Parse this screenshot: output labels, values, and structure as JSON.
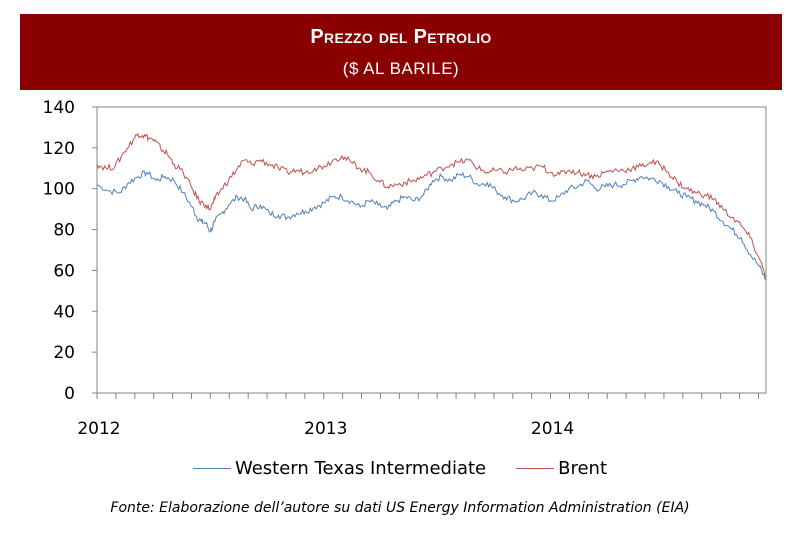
{
  "header": {
    "title": "Prezzo del Petrolio",
    "subtitle": "($ AL BARILE)"
  },
  "source": "Fonte: Elaborazione dell’autore su dati US Energy Information Administration (EIA)",
  "chart_data": {
    "type": "line",
    "x_range": [
      2012.0,
      2014.95
    ],
    "ylim": [
      0,
      140
    ],
    "y_ticks": [
      0,
      20,
      40,
      60,
      80,
      100,
      120,
      140
    ],
    "x_tick_labels": [
      {
        "label": "2012",
        "value": 2012.0
      },
      {
        "label": "2013",
        "value": 2013.0
      },
      {
        "label": "2014",
        "value": 2014.0
      }
    ],
    "grid": false,
    "legend_position": "bottom",
    "series": [
      {
        "name": "Western Texas Intermediate",
        "color": "#4f81bd",
        "points": [
          [
            2012.0,
            102
          ],
          [
            2012.05,
            99
          ],
          [
            2012.1,
            98
          ],
          [
            2012.14,
            103
          ],
          [
            2012.18,
            106
          ],
          [
            2012.22,
            108
          ],
          [
            2012.26,
            104
          ],
          [
            2012.3,
            106
          ],
          [
            2012.34,
            104
          ],
          [
            2012.38,
            98
          ],
          [
            2012.42,
            91
          ],
          [
            2012.44,
            86
          ],
          [
            2012.46,
            84
          ],
          [
            2012.48,
            83
          ],
          [
            2012.5,
            79
          ],
          [
            2012.52,
            84
          ],
          [
            2012.55,
            88
          ],
          [
            2012.58,
            92
          ],
          [
            2012.62,
            96
          ],
          [
            2012.65,
            95
          ],
          [
            2012.68,
            90
          ],
          [
            2012.72,
            92
          ],
          [
            2012.76,
            88
          ],
          [
            2012.8,
            87
          ],
          [
            2012.84,
            86
          ],
          [
            2012.88,
            88
          ],
          [
            2012.92,
            89
          ],
          [
            2012.96,
            91
          ],
          [
            2013.0,
            93
          ],
          [
            2013.04,
            96
          ],
          [
            2013.08,
            96
          ],
          [
            2013.12,
            94
          ],
          [
            2013.16,
            91
          ],
          [
            2013.2,
            94
          ],
          [
            2013.24,
            92
          ],
          [
            2013.28,
            90
          ],
          [
            2013.32,
            94
          ],
          [
            2013.36,
            96
          ],
          [
            2013.4,
            94
          ],
          [
            2013.44,
            97
          ],
          [
            2013.48,
            104
          ],
          [
            2013.52,
            106
          ],
          [
            2013.56,
            104
          ],
          [
            2013.6,
            107
          ],
          [
            2013.64,
            106
          ],
          [
            2013.68,
            102
          ],
          [
            2013.72,
            103
          ],
          [
            2013.76,
            99
          ],
          [
            2013.8,
            96
          ],
          [
            2013.84,
            94
          ],
          [
            2013.88,
            95
          ],
          [
            2013.92,
            98
          ],
          [
            2013.96,
            97
          ],
          [
            2014.0,
            94
          ],
          [
            2014.04,
            96
          ],
          [
            2014.08,
            100
          ],
          [
            2014.12,
            101
          ],
          [
            2014.16,
            104
          ],
          [
            2014.2,
            100
          ],
          [
            2014.24,
            101
          ],
          [
            2014.28,
            102
          ],
          [
            2014.32,
            102
          ],
          [
            2014.36,
            104
          ],
          [
            2014.4,
            106
          ],
          [
            2014.44,
            105
          ],
          [
            2014.48,
            104
          ],
          [
            2014.52,
            101
          ],
          [
            2014.56,
            98
          ],
          [
            2014.6,
            96
          ],
          [
            2014.64,
            94
          ],
          [
            2014.68,
            92
          ],
          [
            2014.72,
            89
          ],
          [
            2014.76,
            84
          ],
          [
            2014.8,
            80
          ],
          [
            2014.84,
            76
          ],
          [
            2014.88,
            68
          ],
          [
            2014.92,
            62
          ],
          [
            2014.95,
            55
          ]
        ]
      },
      {
        "name": "Brent",
        "color": "#c0504d",
        "points": [
          [
            2012.0,
            112
          ],
          [
            2012.04,
            110
          ],
          [
            2012.08,
            111
          ],
          [
            2012.12,
            118
          ],
          [
            2012.16,
            124
          ],
          [
            2012.18,
            127
          ],
          [
            2012.2,
            126
          ],
          [
            2012.23,
            125
          ],
          [
            2012.26,
            123
          ],
          [
            2012.28,
            120
          ],
          [
            2012.31,
            117
          ],
          [
            2012.34,
            112
          ],
          [
            2012.38,
            108
          ],
          [
            2012.42,
            100
          ],
          [
            2012.45,
            94
          ],
          [
            2012.48,
            92
          ],
          [
            2012.5,
            90
          ],
          [
            2012.52,
            95
          ],
          [
            2012.55,
            100
          ],
          [
            2012.58,
            104
          ],
          [
            2012.62,
            110
          ],
          [
            2012.65,
            114
          ],
          [
            2012.68,
            112
          ],
          [
            2012.72,
            114
          ],
          [
            2012.76,
            112
          ],
          [
            2012.8,
            110
          ],
          [
            2012.84,
            108
          ],
          [
            2012.88,
            109
          ],
          [
            2012.92,
            108
          ],
          [
            2012.96,
            110
          ],
          [
            2013.0,
            111
          ],
          [
            2013.04,
            114
          ],
          [
            2013.08,
            116
          ],
          [
            2013.12,
            113
          ],
          [
            2013.16,
            110
          ],
          [
            2013.2,
            108
          ],
          [
            2013.24,
            104
          ],
          [
            2013.28,
            101
          ],
          [
            2013.32,
            102
          ],
          [
            2013.36,
            103
          ],
          [
            2013.4,
            104
          ],
          [
            2013.44,
            106
          ],
          [
            2013.48,
            108
          ],
          [
            2013.52,
            110
          ],
          [
            2013.56,
            112
          ],
          [
            2013.6,
            113
          ],
          [
            2013.64,
            114
          ],
          [
            2013.68,
            110
          ],
          [
            2013.72,
            108
          ],
          [
            2013.76,
            109
          ],
          [
            2013.8,
            108
          ],
          [
            2013.84,
            110
          ],
          [
            2013.88,
            109
          ],
          [
            2013.92,
            110
          ],
          [
            2013.96,
            111
          ],
          [
            2014.0,
            108
          ],
          [
            2014.04,
            107
          ],
          [
            2014.08,
            109
          ],
          [
            2014.12,
            108
          ],
          [
            2014.16,
            107
          ],
          [
            2014.2,
            106
          ],
          [
            2014.24,
            108
          ],
          [
            2014.28,
            109
          ],
          [
            2014.32,
            109
          ],
          [
            2014.36,
            110
          ],
          [
            2014.4,
            111
          ],
          [
            2014.44,
            113
          ],
          [
            2014.48,
            112
          ],
          [
            2014.52,
            108
          ],
          [
            2014.56,
            103
          ],
          [
            2014.6,
            100
          ],
          [
            2014.64,
            98
          ],
          [
            2014.68,
            97
          ],
          [
            2014.72,
            95
          ],
          [
            2014.76,
            90
          ],
          [
            2014.8,
            86
          ],
          [
            2014.84,
            82
          ],
          [
            2014.88,
            76
          ],
          [
            2014.92,
            66
          ],
          [
            2014.95,
            57
          ]
        ]
      }
    ]
  }
}
